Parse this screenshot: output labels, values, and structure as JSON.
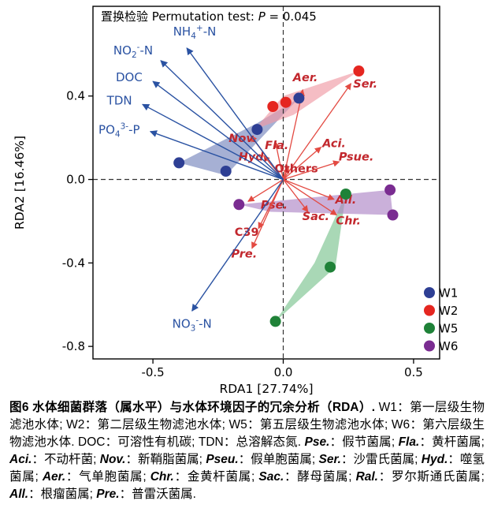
{
  "figure": {
    "caption_segments": [
      {
        "t": "图6 ",
        "b": 1
      },
      {
        "t": "水体细菌群落（属水平）与水体环境因子的冗余分析（",
        "b": 1
      },
      {
        "t": "RDA",
        "b": 1
      },
      {
        "t": "）. ",
        "b": 1
      },
      {
        "t": "W1：第一层级生物滤池水体; W2：第二层级生物滤池水体; W5：第五层级生物滤池水体; W6：第六层级生物滤池水体. DOC：可溶性有机碳; TDN：总溶解态氮. "
      },
      {
        "t": "Pse.",
        "b": 1,
        "i": 1
      },
      {
        "t": "：假节菌属; "
      },
      {
        "t": "Fla.",
        "b": 1,
        "i": 1
      },
      {
        "t": "：黄杆菌属; "
      },
      {
        "t": "Aci.",
        "b": 1,
        "i": 1
      },
      {
        "t": "：不动杆菌; "
      },
      {
        "t": "Nov.",
        "b": 1,
        "i": 1
      },
      {
        "t": "：新鞘脂菌属; "
      },
      {
        "t": "Pseu.",
        "b": 1,
        "i": 1
      },
      {
        "t": "：假单胞菌属; "
      },
      {
        "t": "Ser.",
        "b": 1,
        "i": 1
      },
      {
        "t": "：沙雷氏菌属; "
      },
      {
        "t": "Hyd.",
        "b": 1,
        "i": 1
      },
      {
        "t": "：噬氢菌属; "
      },
      {
        "t": "Aer.",
        "b": 1,
        "i": 1
      },
      {
        "t": "：气单胞菌属; "
      },
      {
        "t": "Chr.",
        "b": 1,
        "i": 1
      },
      {
        "t": "：金黄杆菌属; "
      },
      {
        "t": "Sac.",
        "b": 1,
        "i": 1
      },
      {
        "t": "：酵母菌属; "
      },
      {
        "t": "Ral.",
        "b": 1,
        "i": 1
      },
      {
        "t": "：罗尔斯通氏菌属; "
      },
      {
        "t": "All.",
        "b": 1,
        "i": 1
      },
      {
        "t": "：根瘤菌属; "
      },
      {
        "t": "Pre.",
        "b": 1,
        "i": 1
      },
      {
        "t": "：普雷沃菌属."
      }
    ]
  },
  "chart_data": {
    "type": "scatter",
    "subtype": "rda-biplot",
    "title_parts": [
      {
        "t": "置换检验 Permutation test: "
      },
      {
        "t": "P",
        "i": 1
      },
      {
        "t": " = 0.045"
      }
    ],
    "xlabel": "RDA1 [27.74%]",
    "ylabel": "RDA2 [16.46%]",
    "xlim": [
      -0.73,
      0.6
    ],
    "ylim": [
      -0.86,
      0.83
    ],
    "xticks": [
      -0.5,
      0.0,
      0.5
    ],
    "yticks": [
      0.4,
      0.0,
      -0.4,
      -0.8
    ],
    "grid": false,
    "legend_position": "bottom-right-inside",
    "colors": {
      "env_arrow": "#2a52a2",
      "species_arrow": "#e34a42",
      "species_label": "#c2272d",
      "zero_line": "#333333",
      "axis": "#000000"
    },
    "env_arrows": [
      {
        "name": "NH4+-N",
        "parts": [
          {
            "t": "NH"
          },
          {
            "t": "4",
            "s": "sub"
          },
          {
            "t": "+",
            "s": "sup"
          },
          {
            "t": "-N"
          }
        ],
        "x": -0.37,
        "y": 0.63,
        "lx": -0.34,
        "ly": 0.69,
        "anchor": "middle"
      },
      {
        "name": "NO2--N",
        "parts": [
          {
            "t": "NO"
          },
          {
            "t": "2",
            "s": "sub"
          },
          {
            "t": "-",
            "s": "sup"
          },
          {
            "t": "-N"
          }
        ],
        "x": -0.47,
        "y": 0.57,
        "lx": -0.5,
        "ly": 0.6,
        "anchor": "end"
      },
      {
        "name": "DOC",
        "parts": [
          {
            "t": "DOC"
          }
        ],
        "x": -0.5,
        "y": 0.47,
        "lx": -0.54,
        "ly": 0.47,
        "anchor": "end"
      },
      {
        "name": "TDN",
        "parts": [
          {
            "t": "TDN"
          }
        ],
        "x": -0.54,
        "y": 0.36,
        "lx": -0.58,
        "ly": 0.36,
        "anchor": "end"
      },
      {
        "name": "PO43--P",
        "parts": [
          {
            "t": "PO"
          },
          {
            "t": "4",
            "s": "sub"
          },
          {
            "t": "3-",
            "s": "sup"
          },
          {
            "t": "-P"
          }
        ],
        "x": -0.51,
        "y": 0.23,
        "lx": -0.55,
        "ly": 0.22,
        "anchor": "end"
      },
      {
        "name": "NO3--N",
        "parts": [
          {
            "t": "NO"
          },
          {
            "t": "3",
            "s": "sub"
          },
          {
            "t": "-",
            "s": "sup"
          },
          {
            "t": "-N"
          }
        ],
        "x": -0.35,
        "y": -0.63,
        "lx": -0.35,
        "ly": -0.71,
        "anchor": "middle"
      }
    ],
    "species_arrows": [
      {
        "label": "Aer.",
        "x": 0.075,
        "y": 0.43,
        "lx": 0.085,
        "ly": 0.47,
        "italic": true
      },
      {
        "label": "Ser.",
        "x": 0.26,
        "y": 0.46,
        "lx": 0.315,
        "ly": 0.44,
        "italic": true
      },
      {
        "label": "Nov.",
        "x": -0.125,
        "y": 0.21,
        "lx": -0.155,
        "ly": 0.18,
        "italic": true
      },
      {
        "label": "Fla.",
        "x": -0.03,
        "y": 0.18,
        "lx": -0.025,
        "ly": 0.145,
        "italic": true
      },
      {
        "label": "Aci.",
        "x": 0.145,
        "y": 0.155,
        "lx": 0.195,
        "ly": 0.155,
        "italic": true
      },
      {
        "label": "Hyd.",
        "x": -0.075,
        "y": 0.115,
        "lx": -0.115,
        "ly": 0.09,
        "italic": true
      },
      {
        "label": "Others",
        "x": 0.02,
        "y": 0.06,
        "lx": 0.05,
        "ly": 0.035,
        "italic": false
      },
      {
        "label": "Psue.",
        "x": 0.215,
        "y": 0.085,
        "lx": 0.28,
        "ly": 0.09,
        "italic": true
      },
      {
        "label": "Pse.",
        "x": -0.135,
        "y": -0.105,
        "lx": -0.035,
        "ly": -0.14,
        "italic": true
      },
      {
        "label": "Sac.",
        "x": 0.095,
        "y": -0.155,
        "lx": 0.125,
        "ly": -0.195,
        "italic": true
      },
      {
        "label": "All.",
        "x": 0.195,
        "y": -0.095,
        "lx": 0.24,
        "ly": -0.115,
        "italic": true
      },
      {
        "label": "Chr.",
        "x": 0.205,
        "y": -0.17,
        "lx": 0.25,
        "ly": -0.215,
        "italic": true
      },
      {
        "label": "C39",
        "x": -0.095,
        "y": -0.235,
        "lx": -0.14,
        "ly": -0.27,
        "italic": false
      },
      {
        "label": "Pre.",
        "x": -0.12,
        "y": -0.33,
        "lx": -0.15,
        "ly": -0.375,
        "italic": true
      }
    ],
    "groups": [
      {
        "name": "W1",
        "color": "#2e3f94",
        "hull_color": "#5c6fb0",
        "hull_opacity": 0.55,
        "points": [
          [
            -0.4,
            0.08
          ],
          [
            -0.22,
            0.04
          ],
          [
            -0.1,
            0.24
          ],
          [
            0.06,
            0.39
          ]
        ],
        "hull": [
          [
            -0.4,
            0.08
          ],
          [
            -0.22,
            0.02
          ],
          [
            0.06,
            0.39
          ],
          [
            -0.1,
            0.27
          ]
        ]
      },
      {
        "name": "W2",
        "color": "#e52620",
        "hull_color": "#ef9aa5",
        "hull_opacity": 0.65,
        "points": [
          [
            -0.04,
            0.35
          ],
          [
            0.01,
            0.37
          ],
          [
            0.29,
            0.52
          ]
        ],
        "hull": [
          [
            -0.11,
            0.24
          ],
          [
            0.04,
            0.31
          ],
          [
            0.29,
            0.52
          ],
          [
            0.0,
            0.4
          ]
        ]
      },
      {
        "name": "W5",
        "color": "#1f8238",
        "hull_color": "#6fbe85",
        "hull_opacity": 0.6,
        "points": [
          [
            0.24,
            -0.07
          ],
          [
            0.18,
            -0.42
          ],
          [
            -0.03,
            -0.68
          ]
        ],
        "hull": [
          [
            0.24,
            -0.07
          ],
          [
            0.2,
            -0.42
          ],
          [
            -0.03,
            -0.68
          ],
          [
            0.12,
            -0.4
          ]
        ]
      },
      {
        "name": "W6",
        "color": "#7a2c91",
        "hull_color": "#ad85c6",
        "hull_opacity": 0.65,
        "points": [
          [
            -0.17,
            -0.12
          ],
          [
            0.41,
            -0.05
          ],
          [
            0.42,
            -0.17
          ]
        ],
        "hull": [
          [
            -0.17,
            -0.12
          ],
          [
            0.41,
            -0.05
          ],
          [
            0.42,
            -0.17
          ],
          [
            -0.05,
            -0.155
          ]
        ]
      }
    ],
    "legend_labels": [
      "W1",
      "W2",
      "W5",
      "W6"
    ]
  }
}
